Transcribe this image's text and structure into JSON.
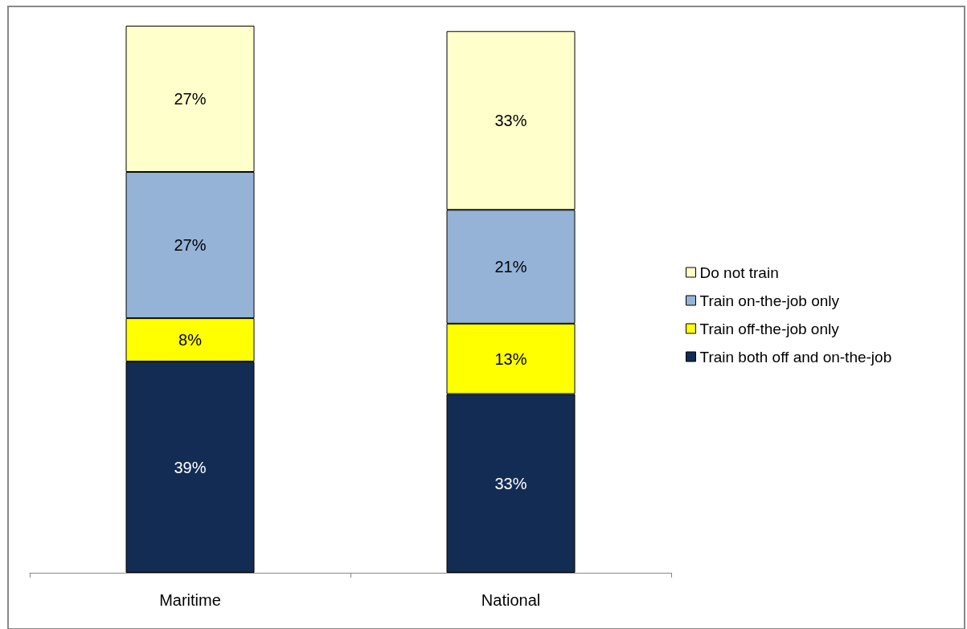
{
  "chart_data": {
    "type": "bar",
    "stacked": true,
    "legend": "right",
    "categories": [
      "Maritime",
      "National"
    ],
    "series": [
      {
        "name": "Train both off and on-the-job",
        "color": "#132c54",
        "values": [
          39,
          33
        ],
        "value_labels": [
          "39%",
          "33%"
        ]
      },
      {
        "name": "Train off-the-job only",
        "color": "#ffff00",
        "values": [
          8,
          13
        ],
        "value_labels": [
          "8%",
          "13%"
        ]
      },
      {
        "name": "Train on-the-job only",
        "color": "#95b3d7",
        "values": [
          27,
          21
        ],
        "value_labels": [
          "27%",
          "21%"
        ]
      },
      {
        "name": "Do not train",
        "color": "#ffffcc",
        "values": [
          27,
          33
        ],
        "value_labels": [
          "27%",
          "33%"
        ]
      }
    ]
  }
}
